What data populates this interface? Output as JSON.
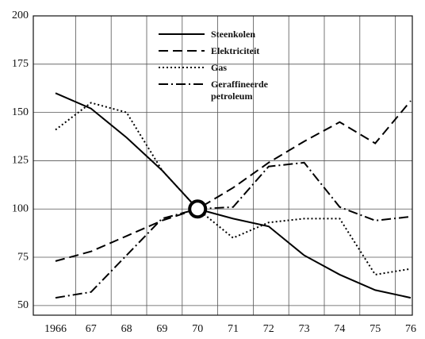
{
  "chart_data": {
    "type": "line",
    "categories": [
      "1966",
      "67",
      "68",
      "69",
      "70",
      "71",
      "72",
      "73",
      "74",
      "75",
      "76"
    ],
    "series": [
      {
        "name": "Steenkolen",
        "color": "#000000",
        "dash": "solid",
        "values": [
          160,
          152,
          137,
          120,
          100,
          95,
          91,
          76,
          66,
          58,
          54
        ]
      },
      {
        "name": "Elektriciteit",
        "color": "#000000",
        "dash": "dashed",
        "values": [
          73,
          78,
          86,
          94,
          100,
          111,
          124,
          135,
          145,
          134,
          156
        ]
      },
      {
        "name": "Gas",
        "color": "#000000",
        "dash": "dotted",
        "values": [
          141,
          155,
          150,
          120,
          100,
          85,
          93,
          95,
          95,
          66,
          69
        ]
      },
      {
        "name": "Geraffineerde petroleum",
        "color": "#000000",
        "dash": "dashdot",
        "values": [
          54,
          57,
          76,
          95,
          100,
          101,
          122,
          124,
          101,
          94,
          96
        ]
      }
    ],
    "ylim": [
      45,
      200
    ],
    "yticks": [
      50,
      75,
      100,
      125,
      150,
      175,
      200
    ],
    "grid": true
  }
}
